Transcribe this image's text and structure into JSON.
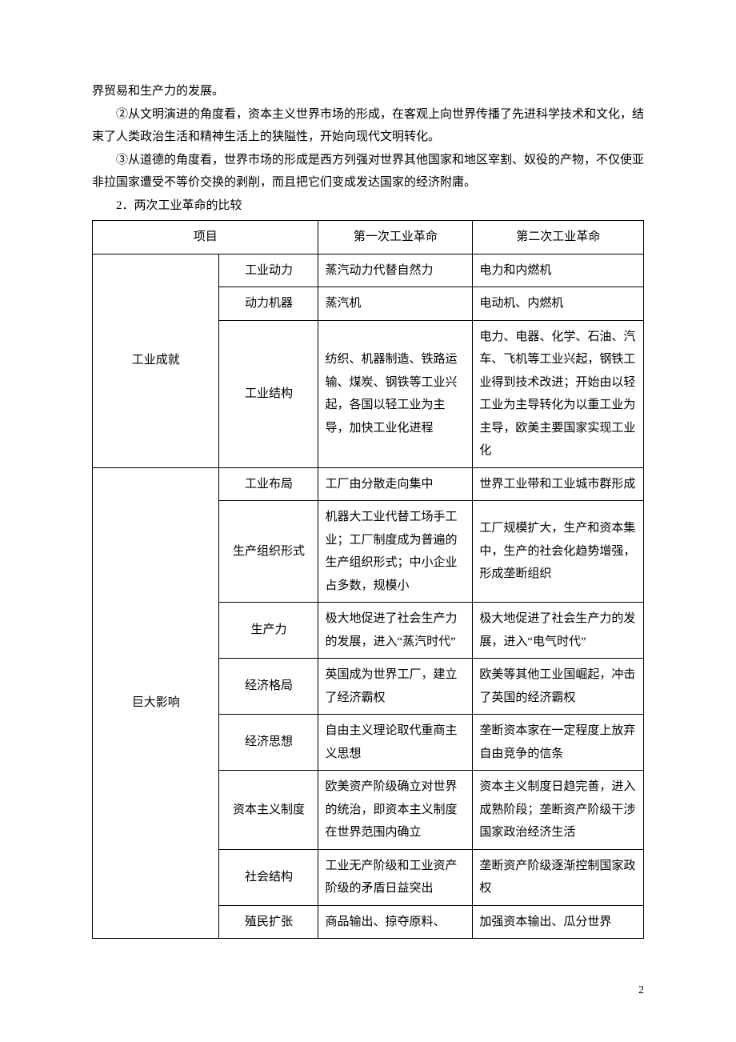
{
  "paragraphs": {
    "p0": "界贸易和生产力的发展。",
    "p1": "②从文明演进的角度看，资本主义世界市场的形成，在客观上向世界传播了先进科学技术和文化，结束了人类政治生活和精神生活上的狭隘性，开始向现代文明转化。",
    "p2": "③从道德的角度看，世界市场的形成是西方列强对世界其他国家和地区宰割、奴役的产物，不仅使亚非拉国家遭受不等价交换的剥削，而且把它们变成发达国家的经济附庸。",
    "p3": "2．两次工业革命的比较"
  },
  "table": {
    "header": {
      "col1": "项目",
      "col3": "第一次工业革命",
      "col4": "第二次工业革命"
    },
    "group1": {
      "label": "工业成就",
      "rows": {
        "r1": {
          "c2": "工业动力",
          "c3": "蒸汽动力代替自然力",
          "c4": "电力和内燃机"
        },
        "r2": {
          "c2": "动力机器",
          "c3": "蒸汽机",
          "c4": "电动机、内燃机"
        },
        "r3": {
          "c2": "工业结构",
          "c3": "纺织、机器制造、铁路运输、煤炭、钢铁等工业兴起，各国以轻工业为主导，加快工业化进程",
          "c4": "电力、电器、化学、石油、汽车、飞机等工业兴起，钢铁工业得到技术改进；开始由以轻工业为主导转化为以重工业为主导，欧美主要国家实现工业化"
        }
      }
    },
    "group2": {
      "label": "巨大影响",
      "rows": {
        "r1": {
          "c2": "工业布局",
          "c3": "工厂由分散走向集中",
          "c4": "世界工业带和工业城市群形成"
        },
        "r2": {
          "c2": "生产组织形式",
          "c3": "机器大工业代替工场手工业；工厂制度成为普遍的生产组织形式；中小企业占多数，规模小",
          "c4": "工厂规模扩大，生产和资本集中，生产的社会化趋势增强，形成垄断组织"
        },
        "r3": {
          "c2": "生产力",
          "c3": "极大地促进了社会生产力的发展，进入“蒸汽时代”",
          "c4": "极大地促进了社会生产力的发展，进入“电气时代”"
        },
        "r4": {
          "c2": "经济格局",
          "c3": "英国成为世界工厂，建立了经济霸权",
          "c4": "欧美等其他工业国崛起，冲击了英国的经济霸权"
        },
        "r5": {
          "c2": "经济思想",
          "c3": "自由主义理论取代重商主义思想",
          "c4": "垄断资本家在一定程度上放弃自由竞争的信条"
        },
        "r6": {
          "c2": "资本主义制度",
          "c3": "欧美资产阶级确立对世界的统治，即资本主义制度在世界范围内确立",
          "c4": "资本主义制度日趋完善，进入成熟阶段；垄断资产阶级干涉国家政治经济生活"
        },
        "r7": {
          "c2": "社会结构",
          "c3": "工业无产阶级和工业资产阶级的矛盾日益突出",
          "c4": "垄断资产阶级逐渐控制国家政权"
        },
        "r8": {
          "c2": "殖民扩张",
          "c3": "商品输出、掠夺原料、",
          "c4": "加强资本输出、瓜分世界"
        }
      }
    }
  },
  "pageNumber": "2"
}
